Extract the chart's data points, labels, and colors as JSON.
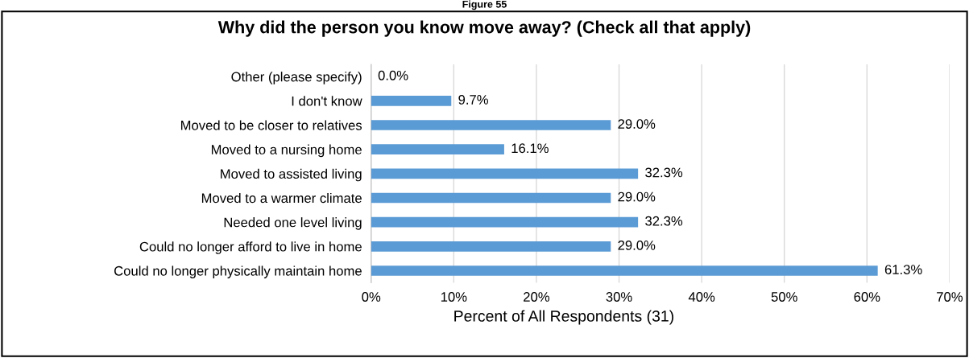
{
  "chart_data": {
    "type": "bar",
    "orientation": "horizontal",
    "title": "Why did the person you know move away? (Check all that apply)",
    "annotations": [
      "Figure 55"
    ],
    "xlabel": "Percent of All Respondents (31)",
    "categories": [
      "Other (please specify)",
      "I don't know",
      "Moved to be closer to relatives",
      "Moved to a nursing home",
      "Moved to assisted living",
      "Moved to a warmer climate",
      "Needed one level living",
      "Could no longer afford to live in home",
      "Could no longer physically maintain home"
    ],
    "values": [
      0.0,
      9.7,
      29.0,
      16.1,
      32.3,
      29.0,
      32.3,
      29.0,
      61.3
    ],
    "value_labels": [
      "0.0%",
      "9.7%",
      "29.0%",
      "16.1%",
      "32.3%",
      "29.0%",
      "32.3%",
      "29.0%",
      "61.3%"
    ],
    "color": "#5b9bd5",
    "xlim": [
      0,
      70
    ],
    "xticks": [
      {
        "value": 0,
        "label": "0%"
      },
      {
        "value": 10,
        "label": "10%"
      },
      {
        "value": 20,
        "label": "20%"
      },
      {
        "value": 30,
        "label": "30%"
      },
      {
        "value": 40,
        "label": "40%"
      },
      {
        "value": 50,
        "label": "50%"
      },
      {
        "value": 60,
        "label": "60%"
      },
      {
        "value": 70,
        "label": "70%"
      }
    ],
    "grid": "x"
  }
}
